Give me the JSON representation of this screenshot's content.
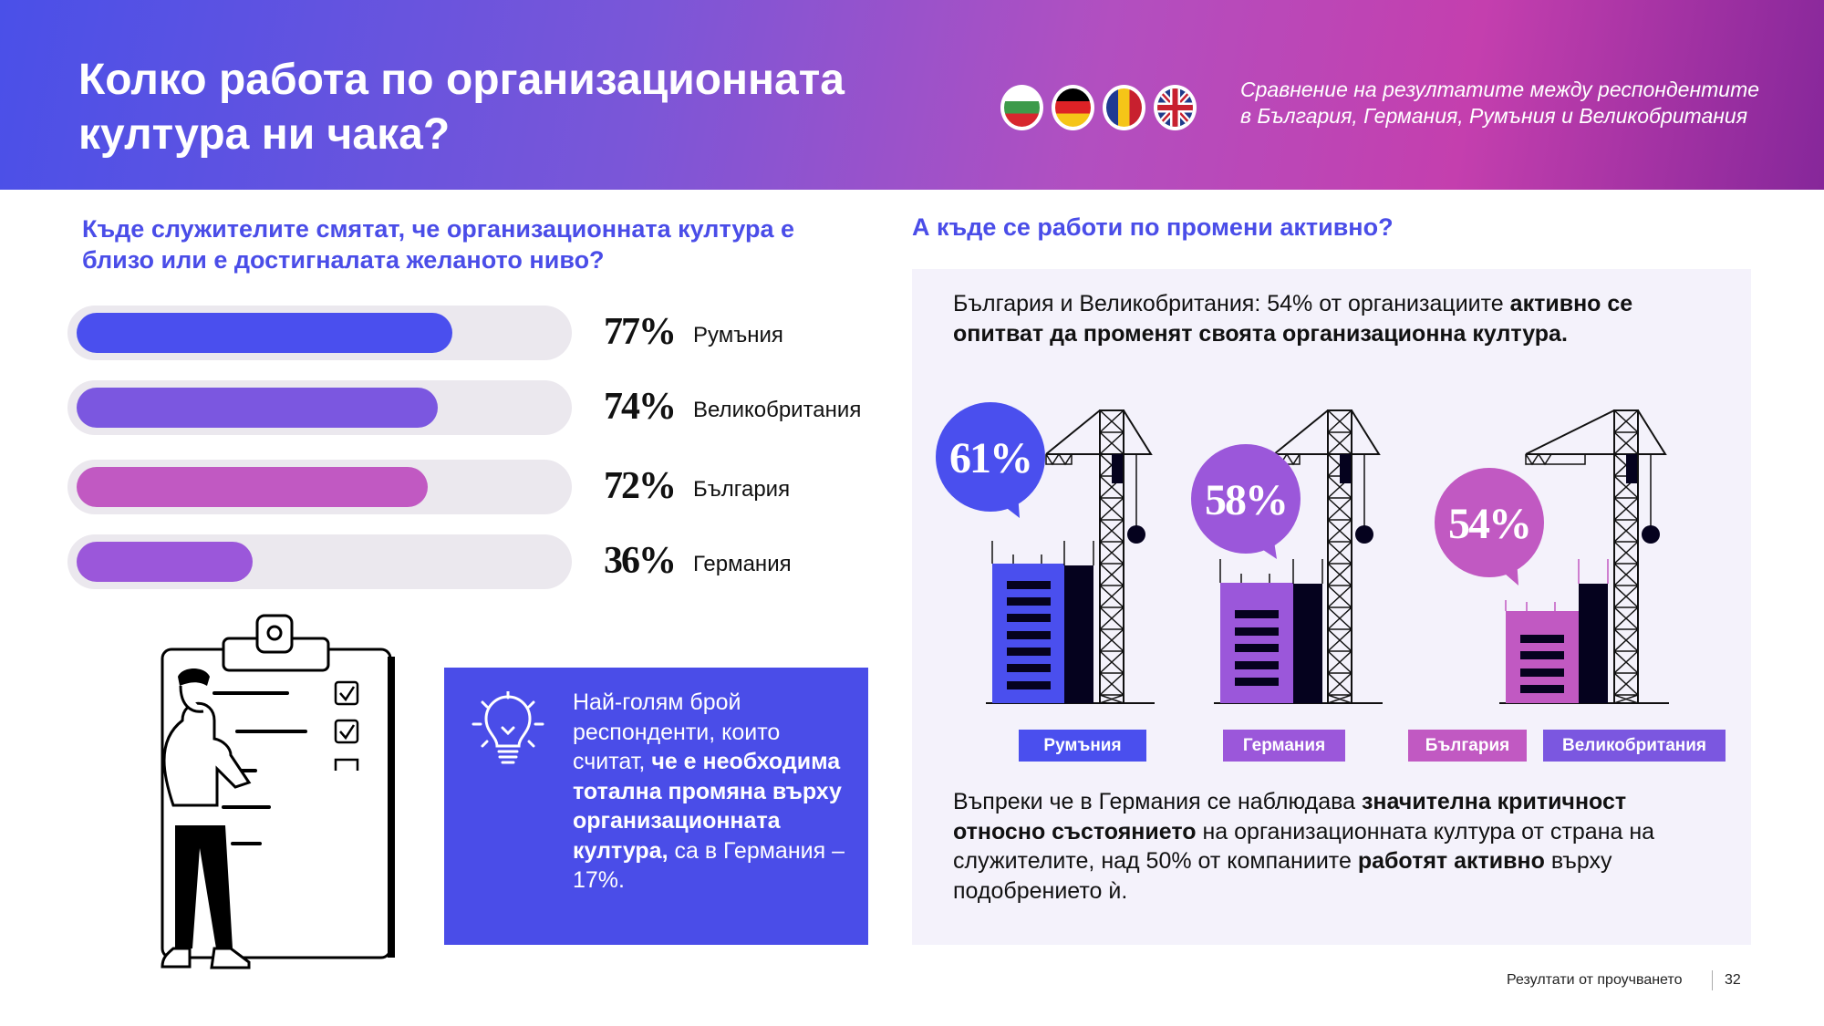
{
  "header": {
    "title": "Колко работа по организационната култура ни чака?",
    "subtitle_line1": "Сравнение на резултатите между респондентите",
    "subtitle_line2": "в България, Германия, Румъния и Великобритания",
    "flags": [
      "bulgaria-flag",
      "germany-flag",
      "romania-flag",
      "uk-flag"
    ]
  },
  "left": {
    "heading": "Къде служителите смятат, че организационната култура е близо или е достигналата желаното ниво?",
    "bars": [
      {
        "country": "Румъния",
        "percent_label": "77%",
        "value": 77,
        "color": "#4a4fee"
      },
      {
        "country": "Великобритания",
        "percent_label": "74%",
        "value": 74,
        "color": "#7b57e0"
      },
      {
        "country": "България",
        "percent_label": "72%",
        "value": 72,
        "color": "#c159c2"
      },
      {
        "country": "Германия",
        "percent_label": "36%",
        "value": 36,
        "color": "#9b57da"
      }
    ],
    "tip": {
      "t1": "Най-голям брой респонденти, които считат, ",
      "t2": "че е необходима тотална промяна върху организационната култура,",
      "t3": " са в Германия – 17%."
    }
  },
  "right": {
    "heading": "А къде се работи по промени активно?",
    "intro_plain": "България и Великобритания: 54% от организациите ",
    "intro_bold": "активно се опитват да променят своята организационна култура.",
    "cranes": [
      {
        "percent_label": "61%",
        "value": 61,
        "color": "#4a4fee"
      },
      {
        "percent_label": "58%",
        "value": 58,
        "color": "#9b57da"
      },
      {
        "percent_label": "54%",
        "value": 54,
        "color": "#c159c2"
      }
    ],
    "labels": [
      {
        "text": "Румъния",
        "color": "#4a4fee"
      },
      {
        "text": "Германия",
        "color": "#9b57da"
      },
      {
        "text": "България",
        "color": "#c159c2"
      },
      {
        "text": "Великобритания",
        "color": "#7b57e0"
      }
    ],
    "outro": {
      "p1": "Въпреки че в Германия се наблюдава ",
      "b1": "значителна критичност относно състоянието",
      "p2": " на организационната култура от страна на служителите, над 50% от компаниите ",
      "b2": "работят активно",
      "p3": " върху подобрението ѝ."
    }
  },
  "footer": {
    "section": "Резултати от проучването",
    "page": "32"
  }
}
